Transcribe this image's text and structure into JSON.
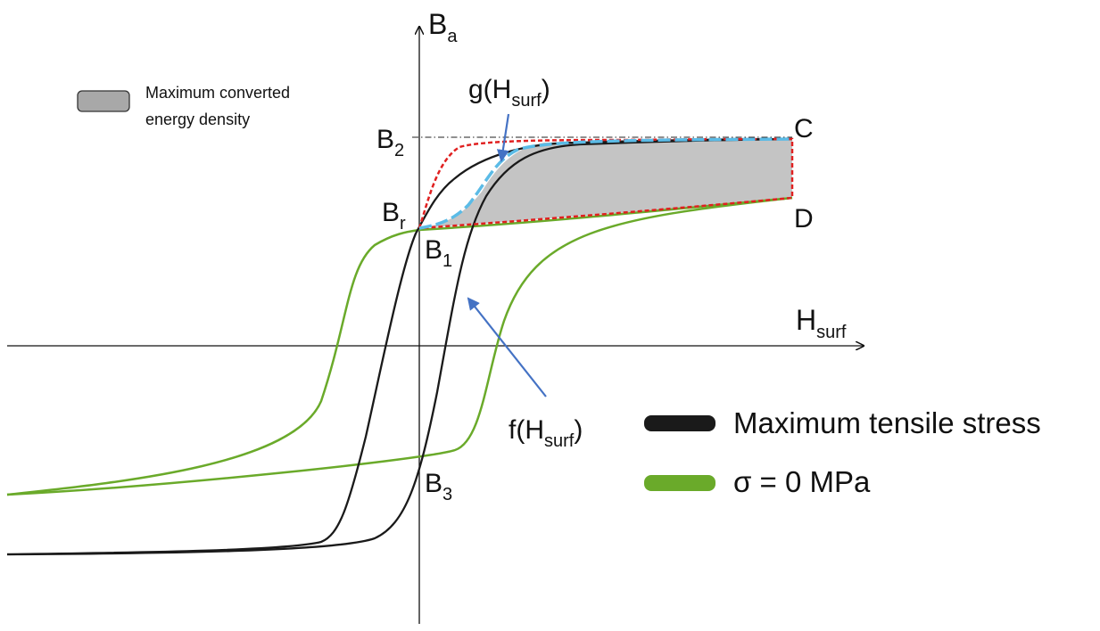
{
  "axes": {
    "y_label": "B",
    "y_label_sub": "a",
    "x_label": "H",
    "x_label_sub": "surf"
  },
  "points": {
    "b2": {
      "main": "B",
      "sub": "2"
    },
    "br": {
      "main": "B",
      "sub": "r"
    },
    "b1": {
      "main": "B",
      "sub": "1"
    },
    "b3": {
      "main": "B",
      "sub": "3"
    },
    "c": "C",
    "d": "D"
  },
  "annotations": {
    "g": {
      "pre": "g(H",
      "sub": "surf",
      "post": ")"
    },
    "f": {
      "pre": "f(H",
      "sub": "surf",
      "post": ")"
    }
  },
  "shaded_legend": {
    "line1": "Maximum converted",
    "line2": "energy density"
  },
  "legend": [
    {
      "label": "Maximum tensile stress",
      "color": "#1a1a1a"
    },
    {
      "label": "σ = 0 MPa",
      "color": "#6aaa2a"
    }
  ],
  "colors": {
    "black_curve": "#1a1a1a",
    "green_curve": "#6aaa2a",
    "red_dashed": "#e02020",
    "blue_dashed": "#5bbbe6",
    "shaded_area": "#c4c4c4",
    "arrow": "#4472c4"
  }
}
